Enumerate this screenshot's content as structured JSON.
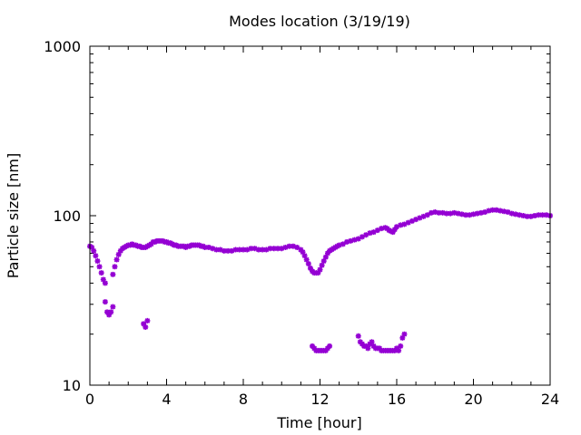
{
  "chart_data": {
    "type": "scatter",
    "title": "Modes location (3/19/19)",
    "xlabel": "Time [hour]",
    "ylabel": "Particle size [nm]",
    "xlim": [
      0,
      24
    ],
    "ylim": [
      10,
      1000
    ],
    "y_scale": "log",
    "x_ticks": [
      0,
      4,
      8,
      12,
      16,
      20,
      24
    ],
    "x_tick_labels": [
      "0",
      "4",
      "8",
      "12",
      "16",
      "20",
      "24"
    ],
    "y_ticks": [
      10,
      100,
      1000
    ],
    "y_tick_labels": [
      "10",
      "100",
      "1000"
    ],
    "grid": false,
    "legend": "none",
    "marker_color": "#9400d3",
    "series": [
      {
        "points": [
          [
            0.0,
            66
          ],
          [
            0.1,
            65
          ],
          [
            0.2,
            62
          ],
          [
            0.3,
            58
          ],
          [
            0.4,
            54
          ],
          [
            0.5,
            50
          ],
          [
            0.6,
            46
          ],
          [
            0.7,
            42
          ],
          [
            0.8,
            40
          ],
          [
            1.2,
            45
          ],
          [
            1.3,
            50
          ],
          [
            1.4,
            55
          ],
          [
            1.5,
            59
          ],
          [
            1.6,
            62
          ],
          [
            1.7,
            64
          ],
          [
            1.8,
            65
          ],
          [
            1.9,
            66
          ],
          [
            2.0,
            67
          ],
          [
            2.1,
            67
          ],
          [
            2.2,
            68
          ],
          [
            2.3,
            67
          ],
          [
            2.4,
            67
          ],
          [
            2.5,
            66
          ],
          [
            2.6,
            66
          ],
          [
            2.7,
            65
          ],
          [
            2.8,
            65
          ],
          [
            2.9,
            65
          ],
          [
            3.0,
            66
          ],
          [
            3.1,
            67
          ],
          [
            3.2,
            68
          ],
          [
            3.3,
            70
          ],
          [
            3.4,
            70
          ],
          [
            3.5,
            71
          ],
          [
            3.6,
            71
          ],
          [
            3.7,
            71
          ],
          [
            3.8,
            71
          ],
          [
            3.9,
            70
          ],
          [
            4.0,
            70
          ],
          [
            4.1,
            69
          ],
          [
            4.2,
            69
          ],
          [
            4.3,
            68
          ],
          [
            4.4,
            67
          ],
          [
            4.5,
            67
          ],
          [
            4.6,
            66
          ],
          [
            4.7,
            66
          ],
          [
            4.8,
            66
          ],
          [
            4.9,
            66
          ],
          [
            5.0,
            65
          ],
          [
            5.1,
            66
          ],
          [
            5.2,
            66
          ],
          [
            5.3,
            67
          ],
          [
            5.4,
            67
          ],
          [
            5.5,
            67
          ],
          [
            5.6,
            67
          ],
          [
            5.7,
            67
          ],
          [
            5.8,
            66
          ],
          [
            5.9,
            66
          ],
          [
            6.0,
            65
          ],
          [
            6.2,
            65
          ],
          [
            6.4,
            64
          ],
          [
            6.6,
            63
          ],
          [
            6.8,
            63
          ],
          [
            7.0,
            62
          ],
          [
            7.2,
            62
          ],
          [
            7.4,
            62
          ],
          [
            7.6,
            63
          ],
          [
            7.8,
            63
          ],
          [
            8.0,
            63
          ],
          [
            8.2,
            63
          ],
          [
            8.4,
            64
          ],
          [
            8.6,
            64
          ],
          [
            8.8,
            63
          ],
          [
            9.0,
            63
          ],
          [
            9.2,
            63
          ],
          [
            9.4,
            64
          ],
          [
            9.6,
            64
          ],
          [
            9.8,
            64
          ],
          [
            10.0,
            64
          ],
          [
            10.2,
            65
          ],
          [
            10.4,
            66
          ],
          [
            10.6,
            66
          ],
          [
            10.8,
            65
          ],
          [
            11.0,
            63
          ],
          [
            11.1,
            61
          ],
          [
            11.2,
            58
          ],
          [
            11.3,
            55
          ],
          [
            11.4,
            52
          ],
          [
            11.5,
            49
          ],
          [
            11.6,
            47
          ],
          [
            11.7,
            46
          ],
          [
            11.8,
            46
          ],
          [
            11.9,
            46
          ],
          [
            12.0,
            48
          ],
          [
            12.1,
            51
          ],
          [
            12.2,
            54
          ],
          [
            12.3,
            57
          ],
          [
            12.4,
            60
          ],
          [
            12.5,
            62
          ],
          [
            12.6,
            63
          ],
          [
            12.7,
            64
          ],
          [
            12.8,
            65
          ],
          [
            12.9,
            66
          ],
          [
            13.0,
            67
          ],
          [
            13.2,
            68
          ],
          [
            13.4,
            70
          ],
          [
            13.6,
            71
          ],
          [
            13.8,
            72
          ],
          [
            14.0,
            73
          ],
          [
            14.2,
            75
          ],
          [
            14.4,
            77
          ],
          [
            14.6,
            79
          ],
          [
            14.8,
            80
          ],
          [
            15.0,
            82
          ],
          [
            15.2,
            84
          ],
          [
            15.4,
            85
          ],
          [
            15.5,
            84
          ],
          [
            15.6,
            82
          ],
          [
            15.7,
            81
          ],
          [
            15.8,
            80
          ],
          [
            15.9,
            83
          ],
          [
            16.0,
            86
          ],
          [
            16.2,
            88
          ],
          [
            16.4,
            89
          ],
          [
            16.6,
            91
          ],
          [
            16.8,
            93
          ],
          [
            17.0,
            95
          ],
          [
            17.2,
            97
          ],
          [
            17.4,
            99
          ],
          [
            17.6,
            101
          ],
          [
            17.8,
            104
          ],
          [
            18.0,
            105
          ],
          [
            18.2,
            104
          ],
          [
            18.4,
            104
          ],
          [
            18.6,
            103
          ],
          [
            18.8,
            103
          ],
          [
            19.0,
            104
          ],
          [
            19.2,
            103
          ],
          [
            19.4,
            102
          ],
          [
            19.6,
            101
          ],
          [
            19.8,
            101
          ],
          [
            20.0,
            102
          ],
          [
            20.2,
            103
          ],
          [
            20.4,
            104
          ],
          [
            20.6,
            105
          ],
          [
            20.8,
            107
          ],
          [
            21.0,
            108
          ],
          [
            21.2,
            108
          ],
          [
            21.4,
            107
          ],
          [
            21.6,
            106
          ],
          [
            21.8,
            105
          ],
          [
            22.0,
            103
          ],
          [
            22.2,
            102
          ],
          [
            22.4,
            101
          ],
          [
            22.6,
            100
          ],
          [
            22.8,
            99
          ],
          [
            23.0,
            99
          ],
          [
            23.2,
            100
          ],
          [
            23.4,
            101
          ],
          [
            23.6,
            101
          ],
          [
            23.8,
            101
          ],
          [
            24.0,
            100
          ]
        ]
      },
      {
        "points": [
          [
            0.8,
            31
          ],
          [
            0.9,
            27
          ],
          [
            1.0,
            26
          ],
          [
            1.1,
            27
          ],
          [
            1.2,
            29
          ],
          [
            2.8,
            23
          ],
          [
            2.9,
            22
          ],
          [
            3.0,
            24
          ],
          [
            11.6,
            17
          ],
          [
            11.7,
            16.5
          ],
          [
            11.8,
            16
          ],
          [
            11.9,
            16
          ],
          [
            12.0,
            16
          ],
          [
            12.1,
            16
          ],
          [
            12.2,
            16
          ],
          [
            12.3,
            16
          ],
          [
            12.4,
            16.5
          ],
          [
            12.5,
            17
          ],
          [
            14.0,
            19.5
          ],
          [
            14.1,
            18
          ],
          [
            14.2,
            17.5
          ],
          [
            14.3,
            17
          ],
          [
            14.4,
            17
          ],
          [
            14.5,
            16.5
          ],
          [
            14.6,
            17.5
          ],
          [
            14.7,
            18
          ],
          [
            14.8,
            17
          ],
          [
            14.9,
            16.5
          ],
          [
            15.0,
            16.5
          ],
          [
            15.1,
            16.5
          ],
          [
            15.2,
            16
          ],
          [
            15.3,
            16
          ],
          [
            15.4,
            16
          ],
          [
            15.5,
            16
          ],
          [
            15.6,
            16
          ],
          [
            15.7,
            16
          ],
          [
            15.8,
            16
          ],
          [
            15.9,
            16
          ],
          [
            16.0,
            16.5
          ],
          [
            16.1,
            16
          ],
          [
            16.2,
            17
          ],
          [
            16.3,
            19
          ],
          [
            16.4,
            20
          ]
        ]
      }
    ]
  }
}
